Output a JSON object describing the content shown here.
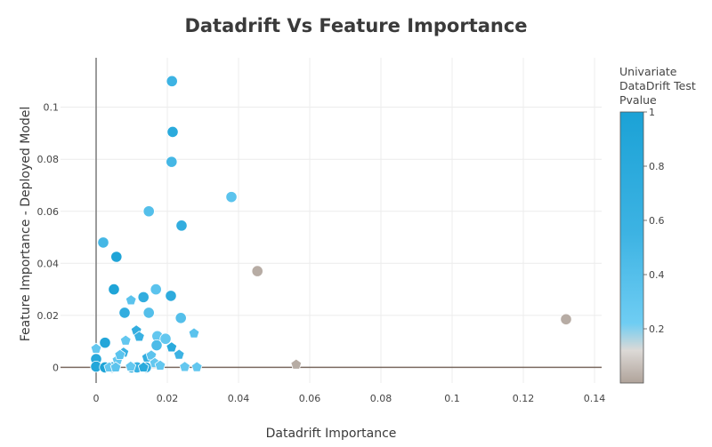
{
  "chart_data": {
    "type": "scatter",
    "title": "Datadrift Vs Feature Importance",
    "xlabel": "Datadrift Importance",
    "ylabel": "Feature Importance - Deployed Model",
    "xlim": [
      -0.01,
      0.142
    ],
    "ylim": [
      -0.006,
      0.119
    ],
    "x_ticks": [
      0,
      0.02,
      0.04,
      0.06,
      0.08,
      0.1,
      0.12,
      0.14
    ],
    "x_tick_labels": [
      "0",
      "0.02",
      "0.04",
      "0.06",
      "0.08",
      "0.1",
      "0.12",
      "0.14"
    ],
    "y_ticks": [
      0,
      0.02,
      0.04,
      0.06,
      0.08,
      0.1
    ],
    "y_tick_labels": [
      "0",
      "0.02",
      "0.04",
      "0.06",
      "0.08",
      "0.1"
    ],
    "grid": true,
    "colorbar": {
      "title_lines": [
        "Univariate",
        "DataDrift Test",
        "Pvalue"
      ],
      "range": [
        0,
        1
      ],
      "ticks": [
        0.2,
        0.4,
        0.6,
        0.8,
        1
      ],
      "tick_labels": [
        "0.2",
        "0.4",
        "0.6",
        "0.8",
        "1"
      ],
      "stops": [
        {
          "v": 0,
          "color": "#b0a39a"
        },
        {
          "v": 0.12,
          "color": "#dcd9d6"
        },
        {
          "v": 0.22,
          "color": "#6fcdf3"
        },
        {
          "v": 0.55,
          "color": "#3db3e3"
        },
        {
          "v": 1,
          "color": "#1ba2d6"
        }
      ]
    },
    "series": [
      {
        "marker": "circle",
        "points": [
          {
            "x": 0.0213,
            "y": 0.11,
            "p": 0.55
          },
          {
            "x": 0.0215,
            "y": 0.0905,
            "p": 0.8
          },
          {
            "x": 0.0212,
            "y": 0.079,
            "p": 0.5
          },
          {
            "x": 0.038,
            "y": 0.0655,
            "p": 0.35
          },
          {
            "x": 0.0148,
            "y": 0.06,
            "p": 0.4
          },
          {
            "x": 0.024,
            "y": 0.0545,
            "p": 0.7
          },
          {
            "x": 0.002,
            "y": 0.048,
            "p": 0.5
          },
          {
            "x": 0.0057,
            "y": 0.0425,
            "p": 0.95
          },
          {
            "x": 0.0453,
            "y": 0.037,
            "p": 0.02
          },
          {
            "x": 0.005,
            "y": 0.03,
            "p": 0.95
          },
          {
            "x": 0.0168,
            "y": 0.03,
            "p": 0.35
          },
          {
            "x": 0.0133,
            "y": 0.027,
            "p": 0.7
          },
          {
            "x": 0.021,
            "y": 0.0275,
            "p": 0.75
          },
          {
            "x": 0.008,
            "y": 0.021,
            "p": 0.7
          },
          {
            "x": 0.0148,
            "y": 0.021,
            "p": 0.4
          },
          {
            "x": 0.0238,
            "y": 0.019,
            "p": 0.4
          },
          {
            "x": 0.132,
            "y": 0.0185,
            "p": 0.02
          },
          {
            "x": 0.0025,
            "y": 0.0095,
            "p": 0.9
          },
          {
            "x": 0.0172,
            "y": 0.012,
            "p": 0.3
          },
          {
            "x": 0.017,
            "y": 0.0085,
            "p": 0.45
          },
          {
            "x": 0.0195,
            "y": 0.011,
            "p": 0.3
          },
          {
            "x": 0.0,
            "y": 0.0032,
            "p": 0.85
          },
          {
            "x": 0.0,
            "y": 0.0003,
            "p": 0.9
          },
          {
            "x": 0.0025,
            "y": 0.0,
            "p": 0.95
          },
          {
            "x": 0.0045,
            "y": 0.0,
            "p": 0.9
          },
          {
            "x": 0.01,
            "y": 0.0,
            "p": 0.85
          },
          {
            "x": 0.0115,
            "y": 0.0,
            "p": 0.6
          },
          {
            "x": 0.014,
            "y": 0.0,
            "p": 0.7
          }
        ]
      },
      {
        "marker": "pentagon",
        "points": [
          {
            "x": 0.0,
            "y": 0.0072,
            "p": 0.3
          },
          {
            "x": 0.0098,
            "y": 0.0258,
            "p": 0.35
          },
          {
            "x": 0.0113,
            "y": 0.0142,
            "p": 0.7
          },
          {
            "x": 0.0121,
            "y": 0.0118,
            "p": 0.6
          },
          {
            "x": 0.0083,
            "y": 0.0103,
            "p": 0.3
          },
          {
            "x": 0.0077,
            "y": 0.0057,
            "p": 0.6
          },
          {
            "x": 0.006,
            "y": 0.0028,
            "p": 0.3
          },
          {
            "x": 0.0067,
            "y": 0.0048,
            "p": 0.35
          },
          {
            "x": 0.0143,
            "y": 0.0038,
            "p": 0.7
          },
          {
            "x": 0.0155,
            "y": 0.0046,
            "p": 0.35
          },
          {
            "x": 0.0165,
            "y": 0.0017,
            "p": 0.3
          },
          {
            "x": 0.018,
            "y": 0.0007,
            "p": 0.3
          },
          {
            "x": 0.0212,
            "y": 0.0077,
            "p": 0.8
          },
          {
            "x": 0.0233,
            "y": 0.0049,
            "p": 0.55
          },
          {
            "x": 0.0275,
            "y": 0.0131,
            "p": 0.35
          },
          {
            "x": 0.0249,
            "y": 0.0002,
            "p": 0.3
          },
          {
            "x": 0.0283,
            "y": 0.0001,
            "p": 0.3
          },
          {
            "x": 0.0562,
            "y": 0.0011,
            "p": 0.02
          },
          {
            "x": 0.0133,
            "y": 0.0,
            "p": 0.8
          },
          {
            "x": 0.0097,
            "y": 0.0003,
            "p": 0.3
          },
          {
            "x": 0.0037,
            "y": 0.0,
            "p": 0.3
          },
          {
            "x": 0.0055,
            "y": 0.0,
            "p": 0.35
          }
        ]
      }
    ]
  }
}
